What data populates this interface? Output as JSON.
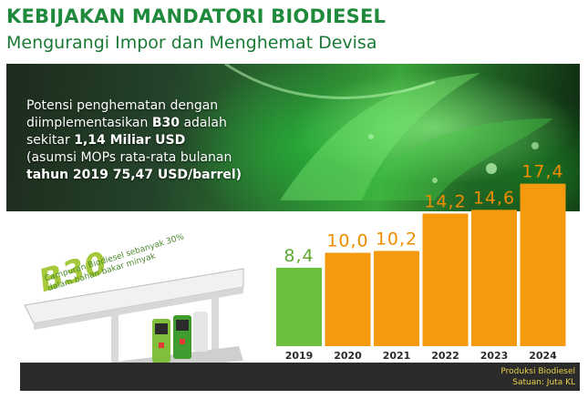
{
  "header": {
    "title": "KEBIJAKAN MANDATORI BIODIESEL",
    "subtitle": "Mengurangi Impor dan Menghemat Devisa"
  },
  "banner": {
    "line1": "Potensi penghematan dengan",
    "line2_pre": "diimplementasikan ",
    "line2_bold": "B30",
    "line2_post": " adalah",
    "line3_pre": "sekitar ",
    "line3_bold": "1,14 Miliar USD",
    "line4": "(asumsi MOPs rata-rata bulanan",
    "line5_bold": "tahun 2019 75,47 USD/barrel)"
  },
  "station": {
    "logo": "B30",
    "desc_line1": "Campuran Biodiesel sebanyak 30%",
    "desc_line2": "dalam bahan bakar minyak"
  },
  "source": {
    "line1": "Produksi Biodiesel",
    "line2": "Satuan: Juta KL"
  },
  "colors": {
    "title": "#1f8a3c",
    "bar_2019": "#6cbf3a",
    "bar_other": "#f59a0e",
    "label_2019": "#5ea82f",
    "label_other": "#f08c00"
  },
  "chart_data": {
    "type": "bar",
    "categories": [
      "2019",
      "2020",
      "2021",
      "2022",
      "2023",
      "2024"
    ],
    "values": [
      8.4,
      10.0,
      10.2,
      14.2,
      14.6,
      17.4
    ],
    "value_labels": [
      "8,4",
      "10,0",
      "10,2",
      "14,2",
      "14,6",
      "17,4"
    ],
    "title": "",
    "xlabel": "",
    "ylabel": "",
    "ylim": [
      0,
      20
    ],
    "grid": false,
    "legend": "none"
  }
}
